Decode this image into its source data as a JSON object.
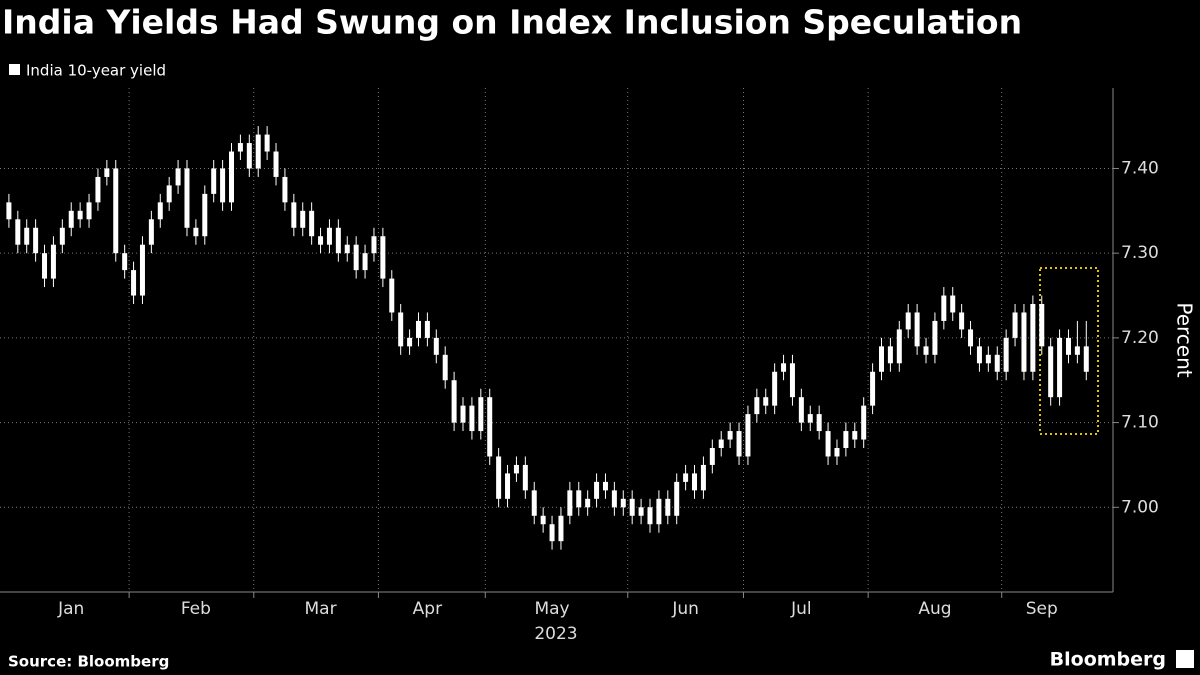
{
  "chart_data": {
    "type": "candlestick",
    "title": "India Yields Had Swung on Index Inclusion Speculation",
    "y_label": "Percent",
    "x_label": "2023",
    "source": "Source: Bloomberg",
    "brand": "Bloomberg",
    "categories": [
      null,
      null,
      null,
      null,
      null,
      null,
      null,
      "Jan",
      null,
      null,
      null,
      null,
      null,
      null,
      null,
      null,
      null,
      null,
      null,
      null,
      null,
      "Feb",
      null,
      null,
      null,
      null,
      null,
      null,
      null,
      null,
      null,
      null,
      null,
      null,
      null,
      "Mar",
      null,
      null,
      null,
      null,
      null,
      null,
      null,
      null,
      null,
      null,
      null,
      "Apr",
      null,
      null,
      null,
      null,
      null,
      null,
      null,
      null,
      null,
      null,
      null,
      null,
      null,
      "May",
      null,
      null,
      null,
      null,
      null,
      null,
      null,
      null,
      null,
      null,
      null,
      null,
      null,
      null,
      "Jun",
      null,
      null,
      null,
      null,
      null,
      null,
      null,
      null,
      null,
      null,
      null,
      null,
      "Jul",
      null,
      null,
      null,
      null,
      null,
      null,
      null,
      null,
      null,
      null,
      null,
      null,
      null,
      null,
      "Aug",
      null,
      null,
      null,
      null,
      null,
      null,
      null,
      null,
      null,
      null,
      null,
      "Sep",
      null,
      null,
      null,
      null,
      null
    ],
    "series": [
      {
        "name": "India 10-year yield",
        "color": "#ffffff",
        "open": [
          7.36,
          7.34,
          7.31,
          7.33,
          7.3,
          7.27,
          7.31,
          7.33,
          7.35,
          7.34,
          7.36,
          7.39,
          7.4,
          7.3,
          7.28,
          7.25,
          7.31,
          7.34,
          7.36,
          7.38,
          7.4,
          7.33,
          7.32,
          7.37,
          7.4,
          7.36,
          7.42,
          7.43,
          7.4,
          7.44,
          7.42,
          7.39,
          7.36,
          7.33,
          7.35,
          7.32,
          7.31,
          7.33,
          7.3,
          7.31,
          7.28,
          7.3,
          7.32,
          7.27,
          7.23,
          7.19,
          7.2,
          7.22,
          7.2,
          7.18,
          7.15,
          7.1,
          7.12,
          7.09,
          7.13,
          7.06,
          7.01,
          7.04,
          7.05,
          7.02,
          6.99,
          6.98,
          6.96,
          6.99,
          7.02,
          7.0,
          7.01,
          7.03,
          7.02,
          7.0,
          7.01,
          6.99,
          7.0,
          6.98,
          7.01,
          6.99,
          7.03,
          7.04,
          7.02,
          7.05,
          7.07,
          7.08,
          7.09,
          7.06,
          7.11,
          7.13,
          7.12,
          7.16,
          7.17,
          7.13,
          7.1,
          7.11,
          7.09,
          7.06,
          7.07,
          7.09,
          7.08,
          7.12,
          7.16,
          7.19,
          7.17,
          7.21,
          7.23,
          7.19,
          7.18,
          7.22,
          7.25,
          7.23,
          7.21,
          7.19,
          7.17,
          7.18,
          7.16,
          7.2,
          7.23,
          7.16,
          7.24,
          7.19,
          7.13,
          7.2,
          7.18,
          7.19
        ],
        "high": [
          7.37,
          7.35,
          7.34,
          7.34,
          7.31,
          7.32,
          7.34,
          7.36,
          7.36,
          7.37,
          7.4,
          7.41,
          7.41,
          7.31,
          7.29,
          7.32,
          7.35,
          7.37,
          7.39,
          7.41,
          7.41,
          7.34,
          7.38,
          7.41,
          7.41,
          7.43,
          7.44,
          7.44,
          7.45,
          7.45,
          7.43,
          7.4,
          7.37,
          7.36,
          7.36,
          7.33,
          7.34,
          7.34,
          7.32,
          7.32,
          7.31,
          7.33,
          7.33,
          7.28,
          7.24,
          7.21,
          7.23,
          7.23,
          7.21,
          7.19,
          7.16,
          7.13,
          7.13,
          7.14,
          7.14,
          7.07,
          7.05,
          7.06,
          7.06,
          7.03,
          7.0,
          6.99,
          7.0,
          7.03,
          7.03,
          7.02,
          7.04,
          7.04,
          7.03,
          7.02,
          7.02,
          7.01,
          7.01,
          7.02,
          7.02,
          7.04,
          7.05,
          7.05,
          7.06,
          7.08,
          7.09,
          7.1,
          7.1,
          7.12,
          7.14,
          7.14,
          7.17,
          7.18,
          7.18,
          7.14,
          7.12,
          7.12,
          7.1,
          7.08,
          7.1,
          7.1,
          7.13,
          7.17,
          7.2,
          7.2,
          7.22,
          7.24,
          7.24,
          7.2,
          7.23,
          7.26,
          7.26,
          7.24,
          7.22,
          7.2,
          7.19,
          7.19,
          7.21,
          7.24,
          7.24,
          7.25,
          7.25,
          7.2,
          7.21,
          7.21,
          7.22,
          7.22
        ],
        "low": [
          7.33,
          7.3,
          7.3,
          7.29,
          7.26,
          7.26,
          7.3,
          7.32,
          7.33,
          7.33,
          7.35,
          7.38,
          7.29,
          7.27,
          7.24,
          7.24,
          7.3,
          7.33,
          7.35,
          7.37,
          7.32,
          7.31,
          7.31,
          7.36,
          7.35,
          7.35,
          7.41,
          7.39,
          7.39,
          7.41,
          7.38,
          7.35,
          7.32,
          7.32,
          7.31,
          7.3,
          7.3,
          7.29,
          7.29,
          7.27,
          7.27,
          7.29,
          7.26,
          7.22,
          7.18,
          7.18,
          7.19,
          7.19,
          7.17,
          7.14,
          7.09,
          7.09,
          7.08,
          7.08,
          7.05,
          7.0,
          7.0,
          7.03,
          7.01,
          6.98,
          6.97,
          6.95,
          6.95,
          6.98,
          6.99,
          6.99,
          7.0,
          7.01,
          6.99,
          6.99,
          6.98,
          6.98,
          6.97,
          6.97,
          6.98,
          6.98,
          7.02,
          7.01,
          7.01,
          7.04,
          7.06,
          7.07,
          7.05,
          7.05,
          7.1,
          7.11,
          7.11,
          7.15,
          7.12,
          7.09,
          7.09,
          7.08,
          7.05,
          7.05,
          7.06,
          7.07,
          7.07,
          7.11,
          7.15,
          7.16,
          7.16,
          7.2,
          7.18,
          7.17,
          7.17,
          7.21,
          7.22,
          7.2,
          7.18,
          7.16,
          7.16,
          7.15,
          7.15,
          7.19,
          7.15,
          7.15,
          7.18,
          7.12,
          7.12,
          7.17,
          7.17,
          7.15
        ],
        "close": [
          7.34,
          7.31,
          7.33,
          7.3,
          7.27,
          7.31,
          7.33,
          7.35,
          7.34,
          7.36,
          7.39,
          7.4,
          7.3,
          7.28,
          7.25,
          7.31,
          7.34,
          7.36,
          7.38,
          7.4,
          7.33,
          7.32,
          7.37,
          7.4,
          7.36,
          7.42,
          7.43,
          7.4,
          7.44,
          7.42,
          7.39,
          7.36,
          7.33,
          7.35,
          7.32,
          7.31,
          7.33,
          7.3,
          7.31,
          7.28,
          7.3,
          7.32,
          7.27,
          7.23,
          7.19,
          7.2,
          7.22,
          7.2,
          7.18,
          7.15,
          7.1,
          7.12,
          7.09,
          7.13,
          7.06,
          7.01,
          7.04,
          7.05,
          7.02,
          6.99,
          6.98,
          6.96,
          6.99,
          7.02,
          7.0,
          7.01,
          7.03,
          7.02,
          7.0,
          7.01,
          6.99,
          7.0,
          6.98,
          7.01,
          6.99,
          7.03,
          7.04,
          7.02,
          7.05,
          7.07,
          7.08,
          7.09,
          7.06,
          7.11,
          7.13,
          7.12,
          7.16,
          7.17,
          7.13,
          7.1,
          7.11,
          7.09,
          7.06,
          7.07,
          7.09,
          7.08,
          7.12,
          7.16,
          7.19,
          7.17,
          7.21,
          7.23,
          7.19,
          7.18,
          7.22,
          7.25,
          7.23,
          7.21,
          7.19,
          7.17,
          7.18,
          7.16,
          7.2,
          7.23,
          7.16,
          7.24,
          7.19,
          7.13,
          7.2,
          7.18,
          7.19,
          7.16
        ]
      }
    ],
    "xlim": [
      -1,
      124
    ],
    "xticks": [
      13.5,
      27.5,
      41.5,
      53.5,
      69.5,
      82.5,
      96.5,
      111.5
    ],
    "ylim": [
      6.9,
      7.495
    ],
    "yticks": [
      {
        "value": 7,
        "label": "7.00"
      },
      {
        "value": 7.1,
        "label": "7.10"
      },
      {
        "value": 7.2,
        "label": "7.20"
      },
      {
        "value": 7.3,
        "label": "7.30"
      },
      {
        "value": 7.4,
        "label": "7.40"
      }
    ],
    "grid": true
  }
}
